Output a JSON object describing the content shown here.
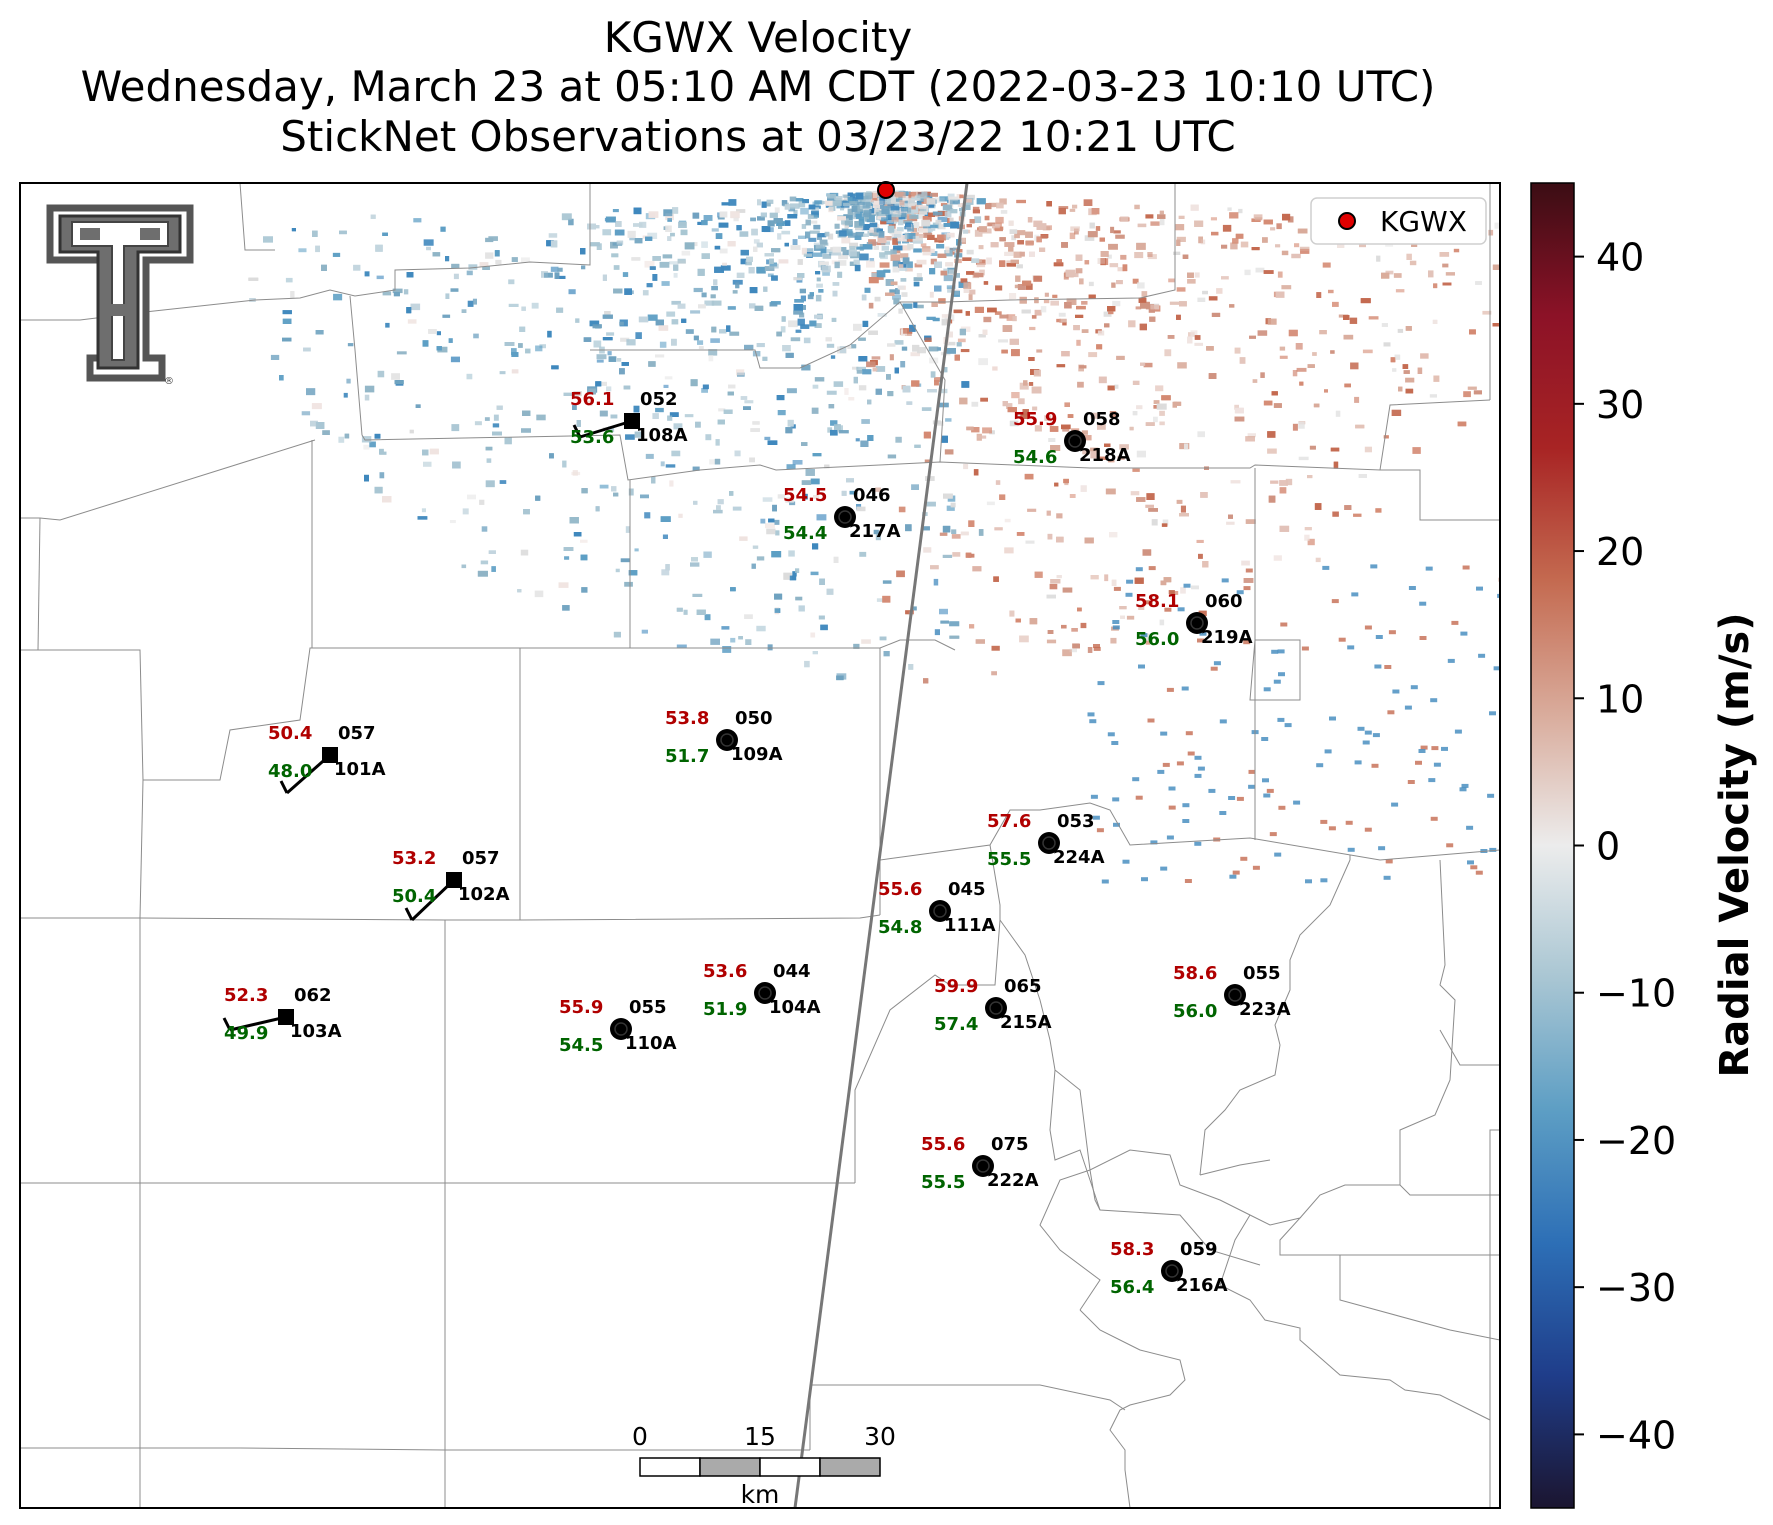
{
  "title": {
    "line1": "KGWX Velocity",
    "line2": "Wednesday, March 23 at 05:10 AM CDT (2022-03-23 10:10 UTC)",
    "line3": "StickNet Observations at 03/23/22 10:21 UTC"
  },
  "legend": {
    "label": "KGWX",
    "marker_color": "#e00000"
  },
  "colorbar": {
    "label": "Radial Velocity (m/s)",
    "ticks": [
      "40",
      "30",
      "20",
      "10",
      "0",
      "−10",
      "−20",
      "−30",
      "−40"
    ],
    "colors": [
      "#1b1530",
      "#1f3d8a",
      "#2d6fb6",
      "#5d9ec4",
      "#a9c6d3",
      "#ececec",
      "#d9ab9b",
      "#c46a50",
      "#a82424",
      "#8c1227",
      "#3b0d14"
    ]
  },
  "scalebar": {
    "ticks": [
      "0",
      "15",
      "30"
    ],
    "unit": "km"
  },
  "stations": [
    {
      "id": "108A",
      "max": "56.1",
      "min": "53.6",
      "dir": "052",
      "marker": "square"
    },
    {
      "id": "217A",
      "max": "54.5",
      "min": "54.4",
      "dir": "046",
      "marker": "circle"
    },
    {
      "id": "218A",
      "max": "55.9",
      "min": "54.6",
      "dir": "058",
      "marker": "circle"
    },
    {
      "id": "219A",
      "max": "58.1",
      "min": "56.0",
      "dir": "060",
      "marker": "circle"
    },
    {
      "id": "101A",
      "max": "50.4",
      "min": "48.0",
      "dir": "057",
      "marker": "square"
    },
    {
      "id": "109A",
      "max": "53.8",
      "min": "51.7",
      "dir": "050",
      "marker": "circle"
    },
    {
      "id": "102A",
      "max": "53.2",
      "min": "50.4",
      "dir": "057",
      "marker": "square"
    },
    {
      "id": "224A",
      "max": "57.6",
      "min": "55.5",
      "dir": "053",
      "marker": "circle"
    },
    {
      "id": "111A",
      "max": "55.6",
      "min": "54.8",
      "dir": "045",
      "marker": "circle"
    },
    {
      "id": "103A",
      "max": "52.3",
      "min": "49.9",
      "dir": "062",
      "marker": "square"
    },
    {
      "id": "104A",
      "max": "53.6",
      "min": "51.9",
      "dir": "044",
      "marker": "circle"
    },
    {
      "id": "110A",
      "max": "55.9",
      "min": "54.5",
      "dir": "055",
      "marker": "circle"
    },
    {
      "id": "215A",
      "max": "59.9",
      "min": "57.4",
      "dir": "065",
      "marker": "circle"
    },
    {
      "id": "223A",
      "max": "58.6",
      "min": "56.0",
      "dir": "055",
      "marker": "circle"
    },
    {
      "id": "222A",
      "max": "55.6",
      "min": "55.5",
      "dir": "075",
      "marker": "circle"
    },
    {
      "id": "216A",
      "max": "58.3",
      "min": "56.4",
      "dir": "059",
      "marker": "circle"
    }
  ]
}
